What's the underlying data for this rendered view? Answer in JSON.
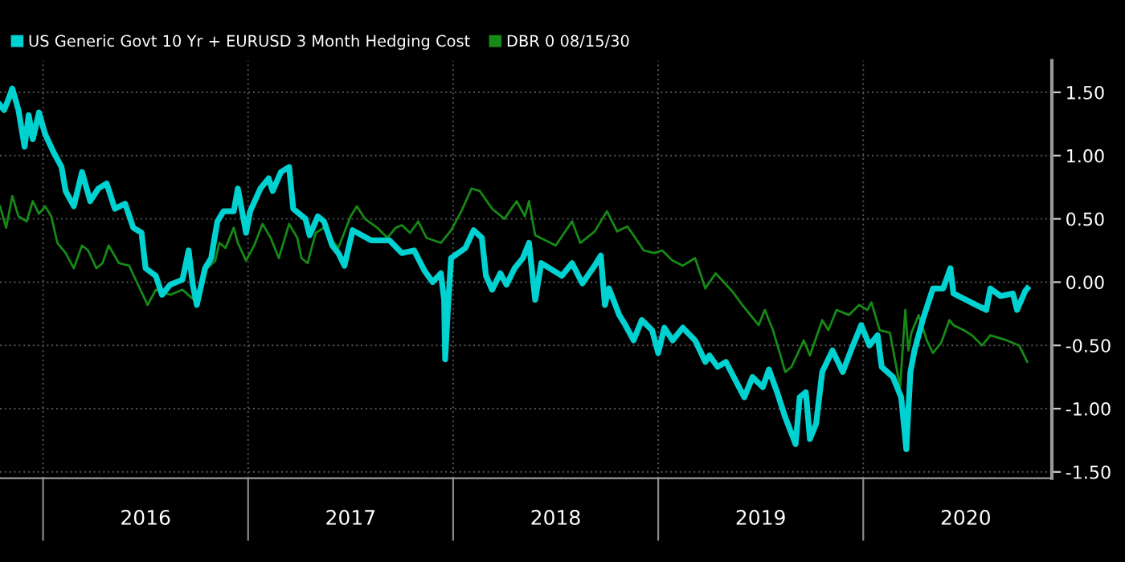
{
  "chart_data": {
    "type": "line",
    "legend": "top left",
    "grid": true,
    "line_style": "solid",
    "xlim": [
      2015.79,
      2020.92
    ],
    "ylim": [
      -1.55,
      1.75
    ],
    "xticks": [
      {
        "value": 2016,
        "label": null
      },
      {
        "value": 2016.5,
        "label": "2016"
      },
      {
        "value": 2017,
        "label": null
      },
      {
        "value": 2017.5,
        "label": "2017"
      },
      {
        "value": 2018,
        "label": null
      },
      {
        "value": 2018.5,
        "label": "2018"
      },
      {
        "value": 2019,
        "label": null
      },
      {
        "value": 2019.5,
        "label": "2019"
      },
      {
        "value": 2020,
        "label": null
      },
      {
        "value": 2020.5,
        "label": "2020"
      }
    ],
    "yticks": [
      {
        "value": 1.5,
        "label": "1.50"
      },
      {
        "value": 1.0,
        "label": "1.00"
      },
      {
        "value": 0.5,
        "label": "0.50"
      },
      {
        "value": 0.0,
        "label": "0.00"
      },
      {
        "value": -0.5,
        "label": "-0.50"
      },
      {
        "value": -1.0,
        "label": "-1.00"
      },
      {
        "value": -1.5,
        "label": "-1.50"
      }
    ],
    "series": [
      {
        "name": "US Generic Govt 10 Yr + EURUSD 3 Month Hedging Cost",
        "color": "#00d2d2",
        "x": [
          2015.79,
          2015.81,
          2015.83,
          2015.85,
          2015.88,
          2015.91,
          2015.93,
          2015.95,
          2015.98,
          2016.01,
          2016.05,
          2016.09,
          2016.11,
          2016.15,
          2016.19,
          2016.23,
          2016.27,
          2016.31,
          2016.35,
          2016.4,
          2016.44,
          2016.48,
          2016.5,
          2016.55,
          2016.58,
          2016.62,
          2016.68,
          2016.71,
          2016.73,
          2016.75,
          2016.79,
          2016.82,
          2016.85,
          2016.88,
          2016.93,
          2016.95,
          2016.99,
          2017.01,
          2017.06,
          2017.1,
          2017.12,
          2017.16,
          2017.2,
          2017.22,
          2017.28,
          2017.3,
          2017.34,
          2017.37,
          2017.41,
          2017.44,
          2017.47,
          2017.51,
          2017.6,
          2017.69,
          2017.75,
          2017.81,
          2017.86,
          2017.9,
          2017.94,
          2017.956,
          2017.961,
          2017.974,
          2017.99,
          2018.06,
          2018.1,
          2018.14,
          2018.16,
          2018.19,
          2018.23,
          2018.26,
          2018.3,
          2018.34,
          2018.37,
          2018.4,
          2018.43,
          2018.53,
          2018.58,
          2018.63,
          2018.69,
          2018.72,
          2018.74,
          2018.76,
          2018.81,
          2018.84,
          2018.88,
          2018.92,
          2018.97,
          2019.0,
          2019.03,
          2019.07,
          2019.12,
          2019.18,
          2019.23,
          2019.25,
          2019.29,
          2019.33,
          2019.42,
          2019.46,
          2019.51,
          2019.54,
          2019.58,
          2019.62,
          2019.67,
          2019.69,
          2019.72,
          2019.74,
          2019.77,
          2019.8,
          2019.85,
          2019.9,
          2019.94,
          2019.99,
          2020.03,
          2020.07,
          2020.09,
          2020.145,
          2020.185,
          2020.21,
          2020.23,
          2020.25,
          2020.29,
          2020.34,
          2020.39,
          2020.425,
          2020.44,
          2020.49,
          2020.55,
          2020.6,
          2020.62,
          2020.67,
          2020.73,
          2020.75,
          2020.79,
          2020.8
        ],
        "values": [
          1.4,
          1.36,
          1.44,
          1.53,
          1.36,
          1.07,
          1.32,
          1.13,
          1.34,
          1.17,
          1.03,
          0.91,
          0.72,
          0.6,
          0.87,
          0.64,
          0.74,
          0.78,
          0.58,
          0.62,
          0.43,
          0.39,
          0.11,
          0.05,
          -0.1,
          -0.02,
          0.02,
          0.25,
          -0.02,
          -0.18,
          0.11,
          0.19,
          0.48,
          0.56,
          0.56,
          0.74,
          0.39,
          0.56,
          0.74,
          0.82,
          0.72,
          0.87,
          0.91,
          0.58,
          0.5,
          0.37,
          0.52,
          0.48,
          0.29,
          0.23,
          0.13,
          0.41,
          0.33,
          0.33,
          0.23,
          0.25,
          0.09,
          0.0,
          0.07,
          -0.14,
          -0.61,
          -0.22,
          0.19,
          0.27,
          0.41,
          0.35,
          0.05,
          -0.06,
          0.07,
          -0.02,
          0.11,
          0.19,
          0.31,
          -0.14,
          0.15,
          0.05,
          0.15,
          -0.01,
          0.13,
          0.21,
          -0.18,
          -0.05,
          -0.26,
          -0.34,
          -0.46,
          -0.3,
          -0.38,
          -0.56,
          -0.36,
          -0.46,
          -0.36,
          -0.46,
          -0.63,
          -0.58,
          -0.67,
          -0.63,
          -0.91,
          -0.75,
          -0.83,
          -0.69,
          -0.87,
          -1.07,
          -1.28,
          -0.91,
          -0.87,
          -1.24,
          -1.12,
          -0.71,
          -0.54,
          -0.71,
          -0.54,
          -0.34,
          -0.5,
          -0.42,
          -0.67,
          -0.75,
          -0.91,
          -1.32,
          -0.71,
          -0.54,
          -0.3,
          -0.05,
          -0.05,
          0.11,
          -0.09,
          -0.13,
          -0.18,
          -0.22,
          -0.05,
          -0.11,
          -0.09,
          -0.22,
          -0.07,
          -0.05
        ]
      },
      {
        "name": "DBR 0 08/15/30",
        "color": "#168a16",
        "x": [
          2015.79,
          2015.82,
          2015.85,
          2015.88,
          2015.92,
          2015.95,
          2015.98,
          2016.01,
          2016.04,
          2016.07,
          2016.11,
          2016.15,
          2016.19,
          2016.22,
          2016.26,
          2016.29,
          2016.32,
          2016.37,
          2016.42,
          2016.46,
          2016.51,
          2016.55,
          2016.62,
          2016.68,
          2016.75,
          2016.8,
          2016.84,
          2016.86,
          2016.89,
          2016.93,
          2016.95,
          2016.99,
          2017.03,
          2017.07,
          2017.11,
          2017.15,
          2017.2,
          2017.24,
          2017.26,
          2017.29,
          2017.33,
          2017.37,
          2017.41,
          2017.44,
          2017.5,
          2017.53,
          2017.57,
          2017.63,
          2017.68,
          2017.72,
          2017.75,
          2017.79,
          2017.83,
          2017.87,
          2017.94,
          2017.99,
          2018.04,
          2018.09,
          2018.13,
          2018.19,
          2018.25,
          2018.31,
          2018.35,
          2018.37,
          2018.4,
          2018.5,
          2018.58,
          2018.62,
          2018.69,
          2018.75,
          2018.8,
          2018.85,
          2018.93,
          2018.98,
          2019.02,
          2019.07,
          2019.12,
          2019.18,
          2019.23,
          2019.28,
          2019.36,
          2019.41,
          2019.49,
          2019.52,
          2019.56,
          2019.62,
          2019.65,
          2019.71,
          2019.74,
          2019.8,
          2019.83,
          2019.87,
          2019.93,
          2019.98,
          2020.02,
          2020.04,
          2020.08,
          2020.13,
          2020.18,
          2020.205,
          2020.22,
          2020.235,
          2020.27,
          2020.31,
          2020.34,
          2020.38,
          2020.42,
          2020.44,
          2020.49,
          2020.53,
          2020.58,
          2020.62,
          2020.7,
          2020.76,
          2020.8
        ],
        "values": [
          0.6,
          0.43,
          0.68,
          0.52,
          0.48,
          0.64,
          0.54,
          0.6,
          0.52,
          0.31,
          0.23,
          0.11,
          0.29,
          0.25,
          0.11,
          0.15,
          0.29,
          0.15,
          0.13,
          -0.01,
          -0.18,
          -0.06,
          -0.1,
          -0.06,
          -0.16,
          0.11,
          0.17,
          0.31,
          0.27,
          0.43,
          0.31,
          0.17,
          0.29,
          0.46,
          0.35,
          0.19,
          0.46,
          0.35,
          0.19,
          0.15,
          0.39,
          0.43,
          0.33,
          0.27,
          0.52,
          0.6,
          0.5,
          0.43,
          0.35,
          0.43,
          0.45,
          0.39,
          0.48,
          0.35,
          0.31,
          0.41,
          0.56,
          0.74,
          0.72,
          0.58,
          0.5,
          0.64,
          0.52,
          0.64,
          0.37,
          0.29,
          0.48,
          0.31,
          0.4,
          0.56,
          0.4,
          0.44,
          0.25,
          0.23,
          0.25,
          0.17,
          0.13,
          0.19,
          -0.05,
          0.07,
          -0.07,
          -0.18,
          -0.34,
          -0.22,
          -0.38,
          -0.71,
          -0.67,
          -0.46,
          -0.58,
          -0.3,
          -0.38,
          -0.22,
          -0.26,
          -0.18,
          -0.22,
          -0.16,
          -0.38,
          -0.4,
          -0.83,
          -0.22,
          -0.54,
          -0.4,
          -0.26,
          -0.46,
          -0.56,
          -0.48,
          -0.3,
          -0.34,
          -0.38,
          -0.42,
          -0.5,
          -0.42,
          -0.46,
          -0.5,
          -0.63
        ]
      }
    ]
  }
}
